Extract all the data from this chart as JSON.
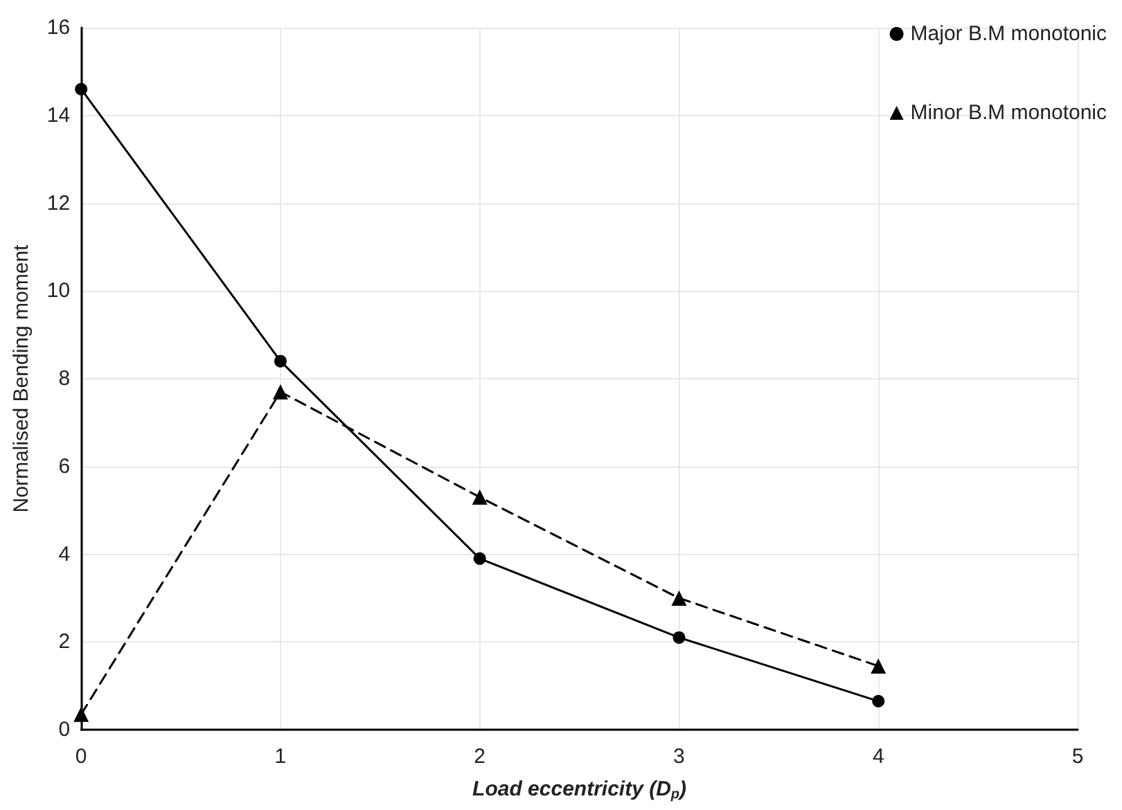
{
  "chart_data": {
    "type": "line",
    "xlabel": "Load eccentricity (D$_{p}$)",
    "ylabel": "Normalised Bending moment",
    "x": [
      0,
      1,
      2,
      3,
      4
    ],
    "series": [
      {
        "name": "Major B.M monotonic",
        "color": "#000000",
        "marker": "circle",
        "line_style": "solid",
        "values": [
          14.6,
          8.4,
          3.9,
          2.1,
          0.65
        ]
      },
      {
        "name": "Minor B.M monotonic",
        "color": "#000000",
        "marker": "triangle",
        "line_style": "dashed",
        "values": [
          0.35,
          7.7,
          5.3,
          3.0,
          1.45
        ]
      }
    ],
    "xlim": [
      0,
      5
    ],
    "xticks": [
      0,
      1,
      2,
      3,
      4,
      5
    ],
    "ylim": [
      0,
      16
    ],
    "yticks": [
      0,
      2,
      4,
      6,
      8,
      10,
      12,
      14,
      16
    ],
    "grid": true,
    "legend": "top right"
  }
}
